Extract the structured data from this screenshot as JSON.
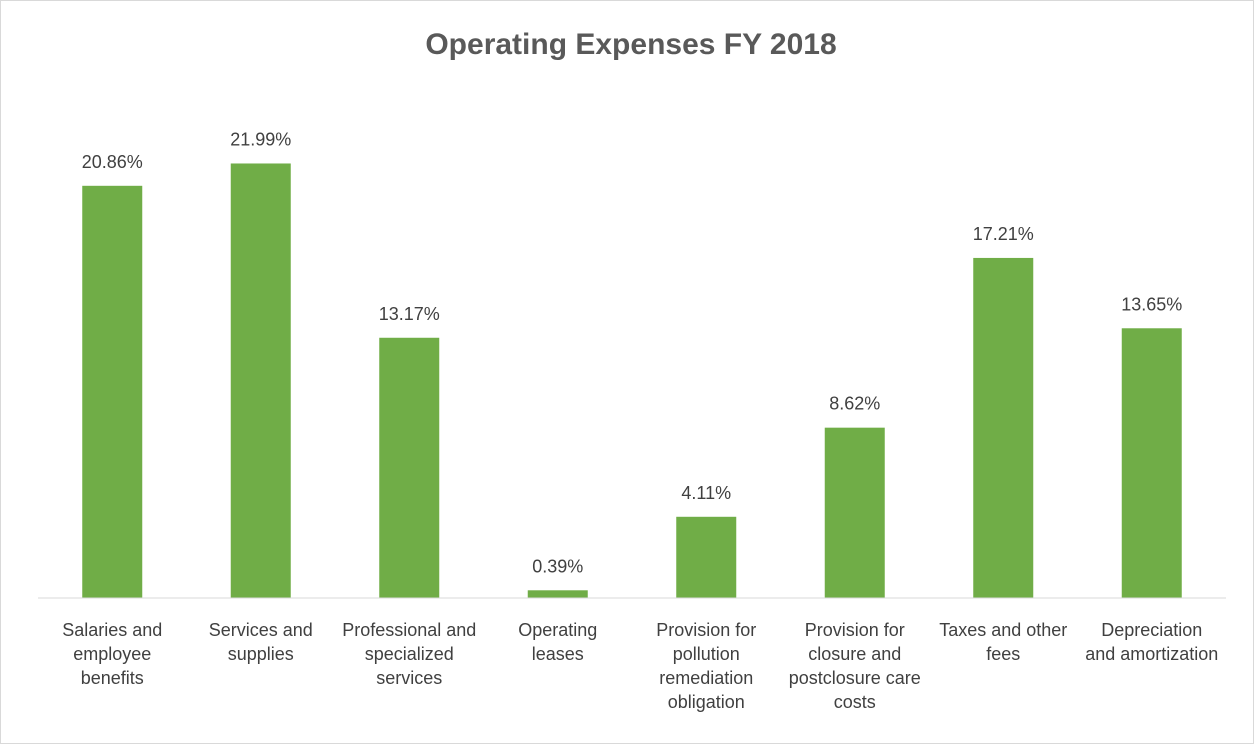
{
  "chart_data": {
    "type": "bar",
    "title": "Operating Expenses FY 2018",
    "categories": [
      "Salaries and employee benefits",
      "Services and supplies",
      "Professional and specialized services",
      "Operating leases",
      "Provision for pollution remediation obligation",
      "Provision for closure and postclosure care costs",
      "Taxes and other fees",
      "Depreciation and amortization"
    ],
    "values": [
      20.86,
      21.99,
      13.17,
      0.39,
      4.11,
      8.62,
      17.21,
      13.65
    ],
    "value_labels": [
      "20.86%",
      "21.99%",
      "13.17%",
      "0.39%",
      "4.11%",
      "8.62%",
      "17.21%",
      "13.65%"
    ],
    "color": "#70ad47",
    "ylim": [
      0,
      25
    ]
  }
}
